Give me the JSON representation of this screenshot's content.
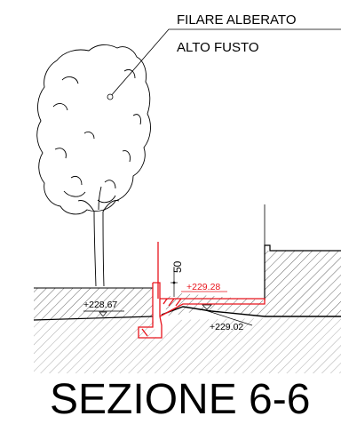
{
  "labels": {
    "tree_note_line1": "FILARE ALBERATO",
    "tree_note_line2": "ALTO FUSTO",
    "elev_left": "+228.67",
    "elev_red": "+229.28",
    "elev_right": "+229.02",
    "dim_50": "50",
    "section_title": "SEZIONE 6-6"
  },
  "colors": {
    "line": "#000000",
    "highlight": "#e8141c"
  }
}
